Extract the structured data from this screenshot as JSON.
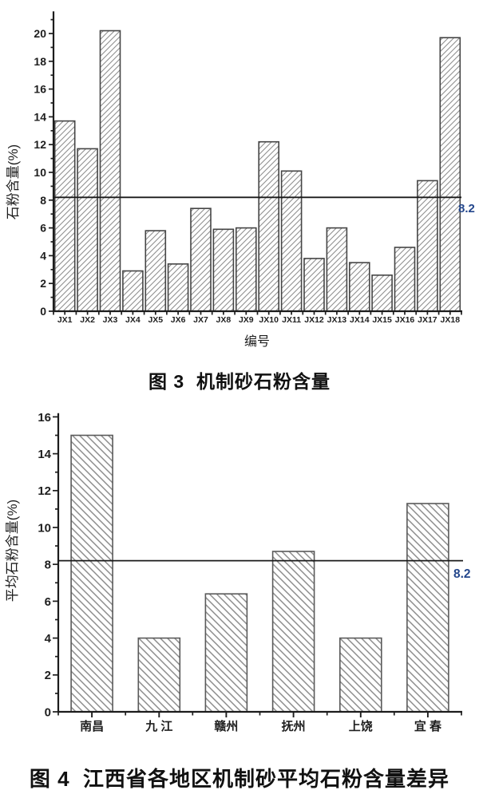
{
  "colors": {
    "axis": "#1c1c1c",
    "text": "#1e1e1e",
    "bar_fill": "#ffffff",
    "bar_border_1": "#454545",
    "bar_border_2": "#5a5a5a",
    "hatch_1": "#8f8f8f",
    "hatch_2": "#8c8c8c",
    "ref_line": "#1a1a1a",
    "ref_label": "#24478c"
  },
  "chart_data": [
    {
      "type": "bar",
      "title": "图 3  机制砂石粉含量",
      "xlabel": "编号",
      "ylabel": "石粉含量(%)",
      "categories": [
        "JX1",
        "JX2",
        "JX3",
        "JX4",
        "JX5",
        "JX6",
        "JX7",
        "JX8",
        "JX9",
        "JX10",
        "JX11",
        "JX12",
        "JX13",
        "JX14",
        "JX15",
        "JX16",
        "JX17",
        "JX18"
      ],
      "values": [
        13.7,
        11.7,
        20.2,
        2.9,
        5.8,
        3.4,
        7.4,
        5.9,
        6.0,
        12.2,
        10.1,
        3.8,
        6.0,
        3.5,
        2.6,
        4.6,
        9.4,
        19.7
      ],
      "ylim": [
        0,
        21.6
      ],
      "ytick_step": 2,
      "ytick_max": 20,
      "grid": false,
      "legend": "none",
      "hatch_direction": "forward",
      "ref_line": {
        "value": 8.2,
        "label": "8.2"
      }
    },
    {
      "type": "bar",
      "title": "图 4  江西省各地区机制砂平均石粉含量差异",
      "xlabel": "",
      "ylabel": "平均石粉含量(%)",
      "categories": [
        "南昌",
        "九 江",
        "赣州",
        "抚州",
        "上饶",
        "宜 春"
      ],
      "values": [
        15.0,
        4.0,
        6.4,
        8.7,
        4.0,
        11.3
      ],
      "ylim": [
        0,
        16.2
      ],
      "ytick_step": 2,
      "ytick_max": 16,
      "grid": false,
      "legend": "none",
      "hatch_direction": "backward",
      "ref_line": {
        "value": 8.2,
        "label": "8.2"
      }
    }
  ]
}
